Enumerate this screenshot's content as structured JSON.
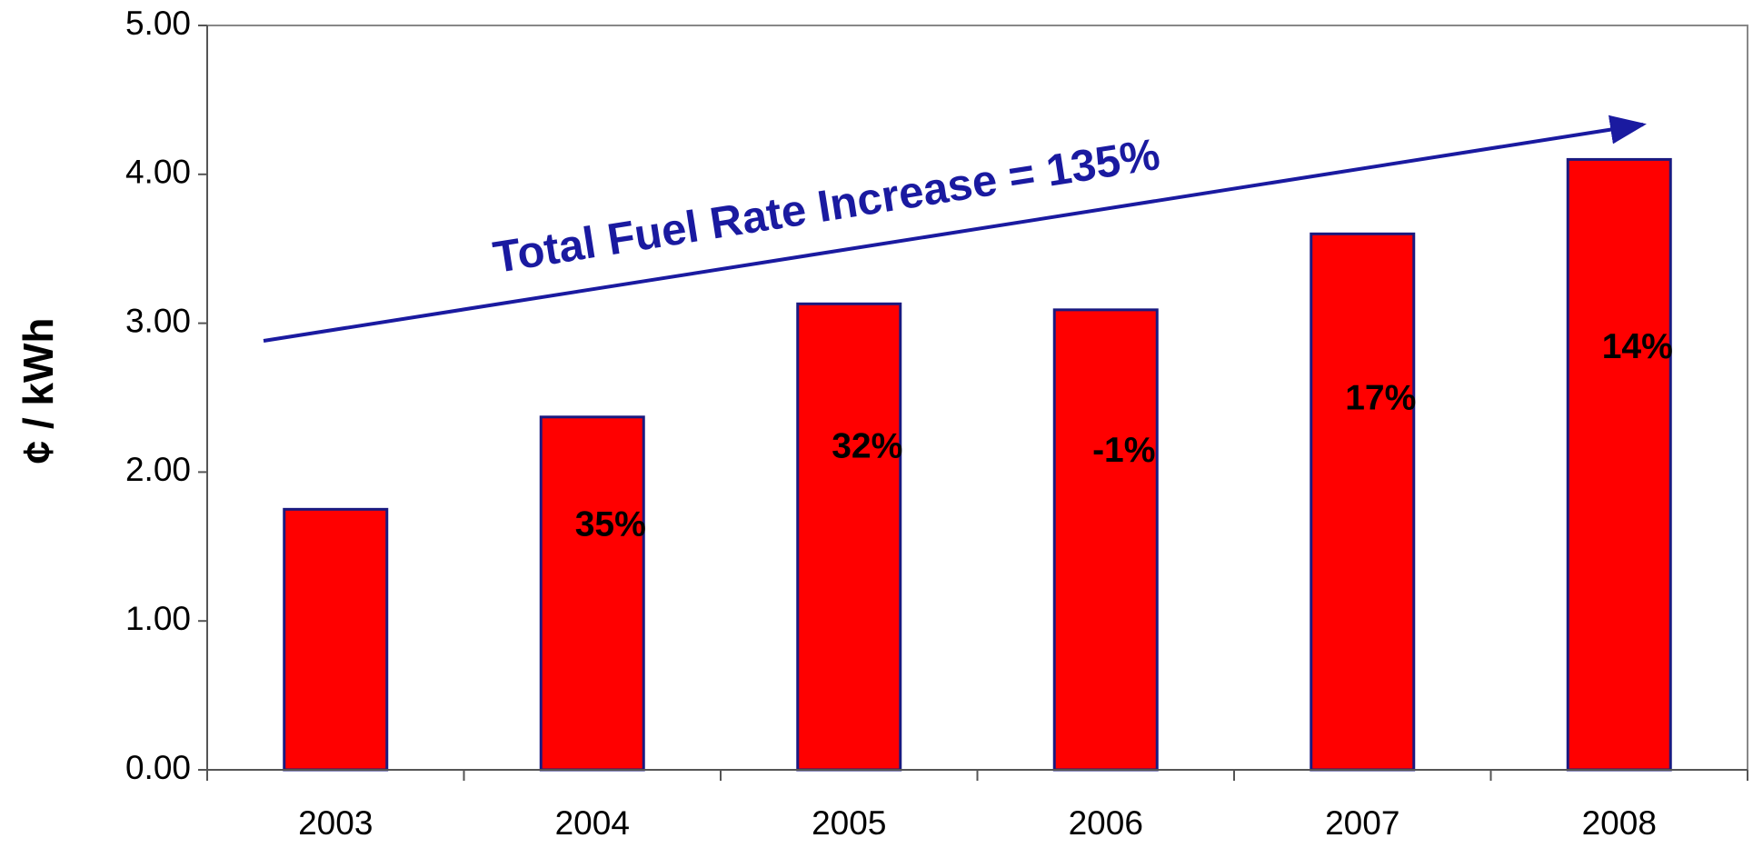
{
  "chart_data": {
    "type": "bar",
    "y_label": "¢ / kWh",
    "annotation": "Total Fuel Rate Increase = 135%",
    "categories": [
      "2003",
      "2004",
      "2005",
      "2006",
      "2007",
      "2008"
    ],
    "values": [
      1.75,
      2.37,
      3.13,
      3.09,
      3.6,
      4.1
    ],
    "bar_labels": [
      null,
      "35%",
      "32%",
      "-1%",
      "17%",
      "14%"
    ],
    "color": "#ff0000",
    "edge_color": "#1a1a80",
    "annotation_color": "#1a1aa0",
    "ylim": [
      0,
      5
    ],
    "yticks": [
      {
        "value": 0,
        "label": "0.00"
      },
      {
        "value": 1,
        "label": "1.00"
      },
      {
        "value": 2,
        "label": "2.00"
      },
      {
        "value": 3,
        "label": "3.00"
      },
      {
        "value": 4,
        "label": "4.00"
      },
      {
        "value": 5,
        "label": "5.00"
      }
    ],
    "grid": false
  }
}
